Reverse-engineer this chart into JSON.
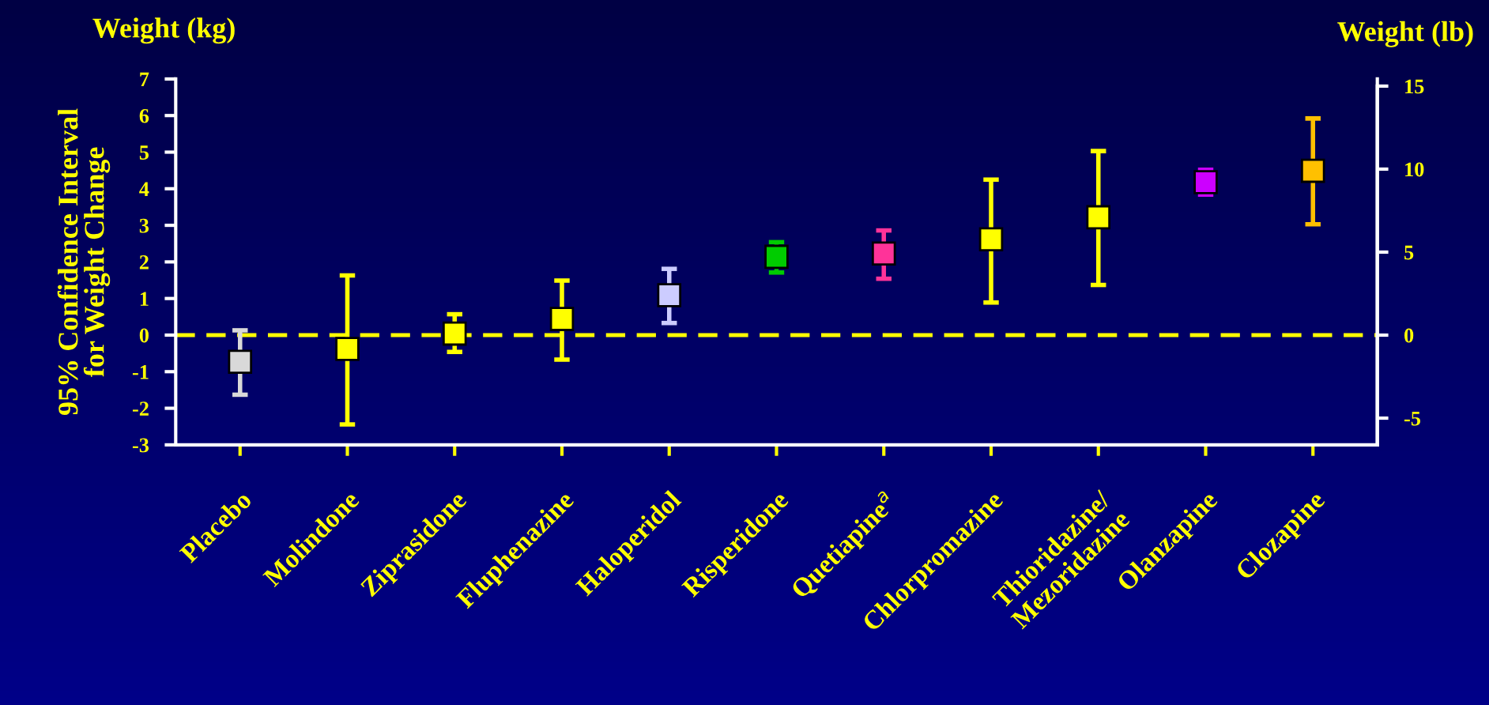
{
  "chart_data": {
    "type": "scatter",
    "title": "Weight (kg)",
    "ylabel": "95% Confidence Interval\nfor Weight Change",
    "y2label": "Weight (lb)",
    "categories": [
      "Placebo",
      "Molindone",
      "Ziprasidone",
      "Fluphenazine",
      "Haloperidol",
      "Risperidone",
      "Quetiapine$^{a}$",
      "Chlorpromazine",
      "Thioridazine/\nMezoridazine",
      "Olanzapine",
      "Clozapine"
    ],
    "values": [
      -0.73,
      -0.38,
      0.04,
      0.44,
      1.09,
      2.14,
      2.23,
      2.62,
      3.22,
      4.18,
      4.49
    ],
    "errors": [
      [
        -1.63,
        0.13
      ],
      [
        -2.44,
        1.63
      ],
      [
        -0.46,
        0.57
      ],
      [
        -0.67,
        1.49
      ],
      [
        0.33,
        1.81
      ],
      [
        1.71,
        2.54
      ],
      [
        1.54,
        2.86
      ],
      [
        0.89,
        4.25
      ],
      [
        1.37,
        5.03
      ],
      [
        3.84,
        4.52
      ],
      [
        3.03,
        5.92
      ]
    ],
    "colors": [
      "#d9d9d9",
      "#ffff00",
      "#ffff00",
      "#ffff00",
      "#ccccff",
      "#00cc00",
      "#ff3399",
      "#ffff00",
      "#ffff00",
      "#cc00ff",
      "#ffc000"
    ],
    "marker": "square",
    "ylim": [
      -3,
      7
    ],
    "yticks": [
      -3,
      -2,
      -1,
      0,
      1,
      2,
      3,
      4,
      5,
      6,
      7
    ],
    "y2lim": [
      -6.61,
      15.43
    ],
    "y2ticks": [
      -5,
      0,
      5,
      10,
      15
    ],
    "ref_lines": [
      {
        "axis": "y",
        "value": 0,
        "label": null,
        "color": "#ffff00",
        "line_style": "dashed"
      }
    ],
    "grid": false,
    "legend": false
  }
}
